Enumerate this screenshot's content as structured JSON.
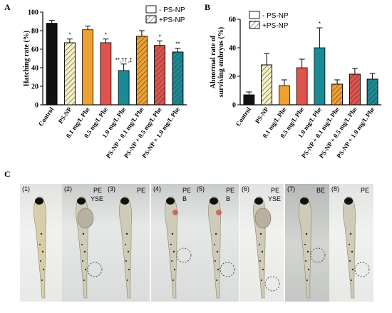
{
  "panels": {
    "A": "A",
    "B": "B",
    "C": "C"
  },
  "categories": [
    "Control",
    "PS-NP",
    "0.1 mg/L Phe",
    "0.5 mg/L Phe",
    "1.0 mg/L Phe",
    "PS-NP + 0.1 mg/L Phe",
    "PS-NP + 0.5 mg/L Phe",
    "PS-NP + 1.0 mg/L Phe"
  ],
  "legend": {
    "minus": "- PS-NP",
    "plus": "+PS-NP"
  },
  "colors": [
    "#111111",
    "#f4f0c0",
    "#f0a030",
    "#e0534c",
    "#1a8a96",
    "#f0a030",
    "#e0534c",
    "#1a8a96"
  ],
  "chart_data": [
    {
      "type": "bar",
      "panel": "A",
      "ylabel": "Hatching rate (%)",
      "ylim": [
        0,
        100
      ],
      "yticks": [
        0,
        20,
        40,
        60,
        80,
        100
      ],
      "values": [
        88,
        67,
        81,
        67,
        37,
        74,
        64,
        57
      ],
      "errors": [
        3,
        4,
        4,
        4,
        7,
        6,
        5,
        4
      ],
      "annotations": [
        "",
        "*",
        "",
        "*",
        "**,††,‡",
        "",
        "*",
        "**"
      ]
    },
    {
      "type": "bar",
      "panel": "B",
      "ylabel": "Abnormal rate of surviving embryos (%)",
      "ylim": [
        0,
        60
      ],
      "yticks": [
        0,
        20,
        40,
        60
      ],
      "values": [
        7,
        28,
        13.5,
        26,
        40,
        14.5,
        21.5,
        18
      ],
      "errors": [
        2,
        8,
        4,
        6,
        14,
        3,
        4,
        4
      ],
      "annotations": [
        "",
        "",
        "",
        "",
        "*",
        "",
        "",
        ""
      ]
    }
  ],
  "photos": {
    "labels": [
      "(1)",
      "(2)",
      "(3)",
      "(4)",
      "(5)",
      "(6)",
      "(7)",
      "(8)"
    ],
    "tags": [
      [],
      [
        "PE",
        "YSE"
      ],
      [
        "PE"
      ],
      [
        "PE",
        "B"
      ],
      [
        "PE",
        "B"
      ],
      [
        "PE",
        "YSE"
      ],
      [
        "BE"
      ],
      [
        "PE"
      ]
    ]
  }
}
